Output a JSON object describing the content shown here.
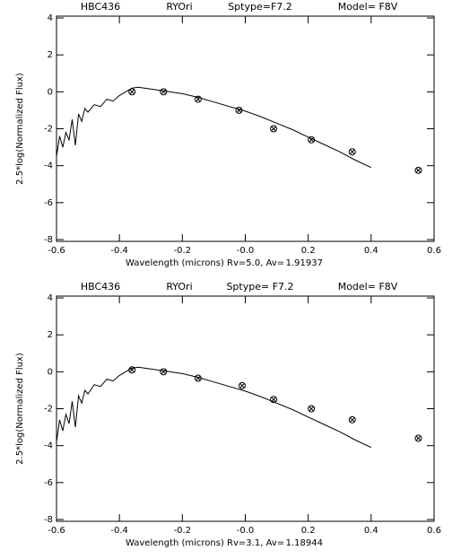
{
  "chart_data": [
    {
      "type": "line",
      "title": [
        "HBC436",
        "RYOri",
        "Sptype=F7.2",
        "Model= F8V"
      ],
      "xlabel": [
        "Wavelength (microns) Rv=5.0, Av=",
        "1.91937"
      ],
      "ylabel": "2.5*log(Normalized Flux)",
      "xlim": [
        -0.6,
        0.6
      ],
      "ylim": [
        -8,
        4
      ],
      "xticks": [
        -0.6,
        -0.4,
        -0.2,
        {
          "value": 0,
          "label": "-0.0"
        },
        0.2,
        0.4,
        0.6
      ],
      "yticks": [
        -8,
        -6,
        -4,
        -2,
        0,
        2,
        4
      ],
      "series": [
        {
          "style": "line",
          "color": "#000000",
          "x": [
            -0.6,
            -0.59,
            -0.58,
            -0.57,
            -0.56,
            -0.55,
            -0.54,
            -0.53,
            -0.52,
            -0.51,
            -0.5,
            -0.48,
            -0.46,
            -0.44,
            -0.42,
            -0.4,
            -0.38,
            -0.36,
            -0.34,
            -0.32,
            -0.3,
            -0.28,
            -0.26,
            -0.24,
            -0.22,
            -0.2,
            -0.15,
            -0.1,
            -0.05,
            0,
            0.05,
            0.1,
            0.15,
            0.2,
            0.25,
            0.3,
            0.35,
            0.4
          ],
          "values": [
            -3.5,
            -2.4,
            -3.0,
            -2.2,
            -2.6,
            -1.5,
            -2.9,
            -1.2,
            -1.6,
            -0.9,
            -1.1,
            -0.7,
            -0.8,
            -0.4,
            -0.5,
            -0.2,
            0.0,
            0.2,
            0.25,
            0.2,
            0.15,
            0.1,
            0.05,
            0.0,
            -0.05,
            -0.1,
            -0.3,
            -0.55,
            -0.8,
            -1.05,
            -1.35,
            -1.7,
            -2.05,
            -2.45,
            -2.85,
            -3.25,
            -3.7,
            -4.1
          ]
        },
        {
          "style": "marker",
          "color": "#000000",
          "x": [
            -0.36,
            -0.26,
            -0.15,
            -0.02,
            0.09,
            0.21,
            0.34,
            0.55
          ],
          "values": [
            0.0,
            0.0,
            -0.4,
            -1.0,
            -2.0,
            -2.6,
            -3.25,
            -4.25
          ]
        }
      ]
    },
    {
      "type": "line",
      "title": [
        "HBC436",
        "RYOri",
        "Sptype= F7.2",
        "Model= F8V"
      ],
      "xlabel": [
        "Wavelength (microns) Rv=3.1,  Av=",
        "1.18944"
      ],
      "ylabel": "2.5*log(Normalized Flux)",
      "xlim": [
        -0.6,
        0.6
      ],
      "ylim": [
        -8,
        4
      ],
      "xticks": [
        -0.6,
        -0.4,
        -0.2,
        {
          "value": 0,
          "label": "-0.0"
        },
        0.2,
        0.4,
        0.6
      ],
      "yticks": [
        -8,
        -6,
        -4,
        -2,
        0,
        2,
        4
      ],
      "series": [
        {
          "style": "line",
          "color": "#000000",
          "x": [
            -0.6,
            -0.59,
            -0.58,
            -0.57,
            -0.56,
            -0.55,
            -0.54,
            -0.53,
            -0.52,
            -0.51,
            -0.5,
            -0.48,
            -0.46,
            -0.44,
            -0.42,
            -0.4,
            -0.38,
            -0.36,
            -0.34,
            -0.32,
            -0.3,
            -0.28,
            -0.26,
            -0.24,
            -0.22,
            -0.2,
            -0.15,
            -0.1,
            -0.05,
            0,
            0.05,
            0.1,
            0.15,
            0.2,
            0.25,
            0.3,
            0.35,
            0.4
          ],
          "values": [
            -3.8,
            -2.6,
            -3.2,
            -2.3,
            -2.8,
            -1.6,
            -3.0,
            -1.3,
            -1.7,
            -1.0,
            -1.2,
            -0.7,
            -0.8,
            -0.4,
            -0.5,
            -0.2,
            0.0,
            0.2,
            0.25,
            0.2,
            0.15,
            0.1,
            0.05,
            0.0,
            -0.05,
            -0.1,
            -0.3,
            -0.55,
            -0.8,
            -1.05,
            -1.35,
            -1.7,
            -2.05,
            -2.45,
            -2.85,
            -3.25,
            -3.7,
            -4.1
          ]
        },
        {
          "style": "marker",
          "color": "#000000",
          "x": [
            -0.36,
            -0.26,
            -0.15,
            -0.01,
            0.09,
            0.21,
            0.34,
            0.55
          ],
          "values": [
            0.1,
            0.0,
            -0.35,
            -0.75,
            -1.5,
            -2.0,
            -2.6,
            -3.6
          ]
        }
      ]
    }
  ]
}
